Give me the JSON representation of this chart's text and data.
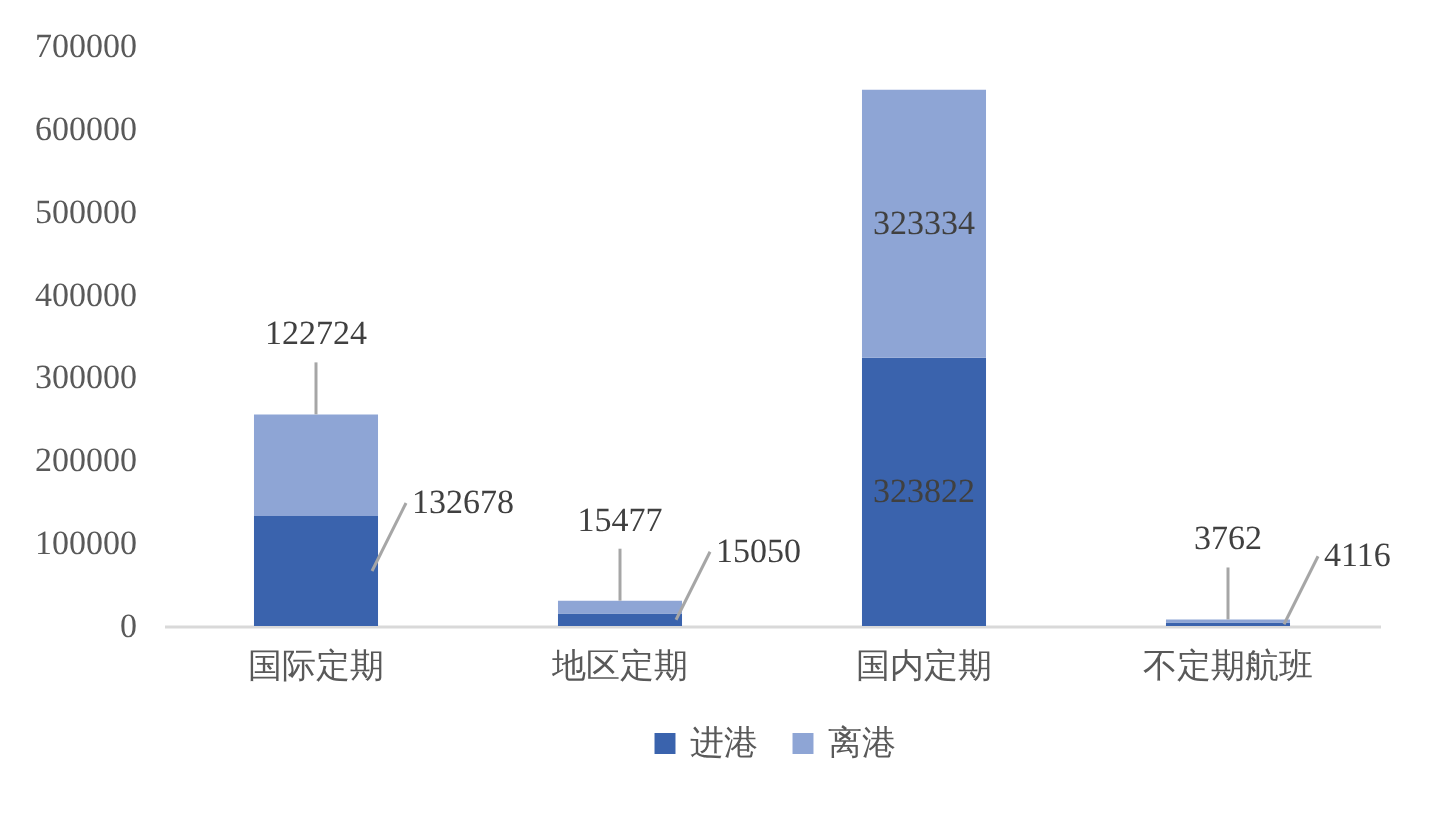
{
  "chart_data": {
    "type": "bar",
    "stacked": true,
    "categories": [
      "国际定期",
      "地区定期",
      "国内定期",
      "不定期航班"
    ],
    "series": [
      {
        "name": "进港",
        "color": "#3a63ad",
        "values": [
          132678,
          15050,
          323822,
          4116
        ]
      },
      {
        "name": "离港",
        "color": "#8ea5d5",
        "values": [
          122724,
          15477,
          323334,
          3762
        ]
      }
    ],
    "ylim": [
      0,
      700000
    ],
    "yticks": [
      0,
      100000,
      200000,
      300000,
      400000,
      500000,
      600000,
      700000
    ],
    "grid": false,
    "legend": "bottom",
    "data_labels": true
  }
}
